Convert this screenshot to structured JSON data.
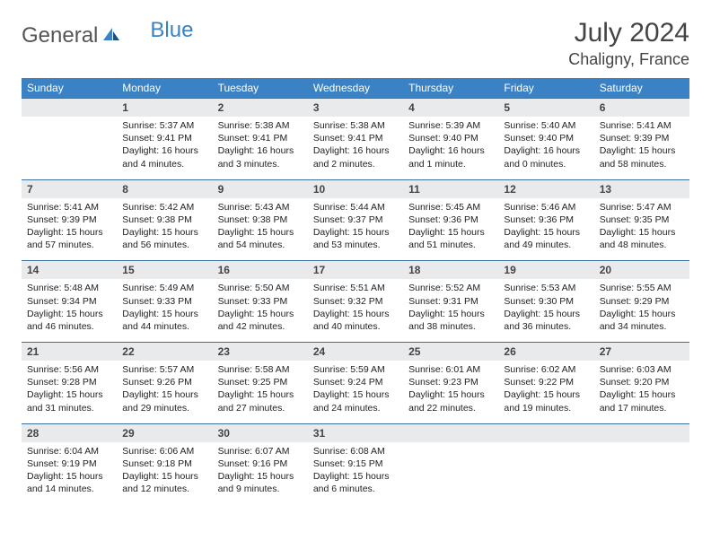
{
  "brand": {
    "part1": "General",
    "part2": "Blue"
  },
  "title": "July 2024",
  "location": "Chaligny, France",
  "colors": {
    "header_bg": "#3b82c4",
    "header_text": "#ffffff",
    "daynum_bg": "#e9eaec",
    "border": "#3b6fa0",
    "text": "#222222",
    "brand_gray": "#555555",
    "brand_blue": "#3b82c4"
  },
  "day_headers": [
    "Sunday",
    "Monday",
    "Tuesday",
    "Wednesday",
    "Thursday",
    "Friday",
    "Saturday"
  ],
  "weeks": [
    {
      "nums": [
        "",
        "1",
        "2",
        "3",
        "4",
        "5",
        "6"
      ],
      "cells": [
        {
          "l1": "",
          "l2": "",
          "l3": "",
          "l4": ""
        },
        {
          "l1": "Sunrise: 5:37 AM",
          "l2": "Sunset: 9:41 PM",
          "l3": "Daylight: 16 hours",
          "l4": "and 4 minutes."
        },
        {
          "l1": "Sunrise: 5:38 AM",
          "l2": "Sunset: 9:41 PM",
          "l3": "Daylight: 16 hours",
          "l4": "and 3 minutes."
        },
        {
          "l1": "Sunrise: 5:38 AM",
          "l2": "Sunset: 9:41 PM",
          "l3": "Daylight: 16 hours",
          "l4": "and 2 minutes."
        },
        {
          "l1": "Sunrise: 5:39 AM",
          "l2": "Sunset: 9:40 PM",
          "l3": "Daylight: 16 hours",
          "l4": "and 1 minute."
        },
        {
          "l1": "Sunrise: 5:40 AM",
          "l2": "Sunset: 9:40 PM",
          "l3": "Daylight: 16 hours",
          "l4": "and 0 minutes."
        },
        {
          "l1": "Sunrise: 5:41 AM",
          "l2": "Sunset: 9:39 PM",
          "l3": "Daylight: 15 hours",
          "l4": "and 58 minutes."
        }
      ]
    },
    {
      "nums": [
        "7",
        "8",
        "9",
        "10",
        "11",
        "12",
        "13"
      ],
      "cells": [
        {
          "l1": "Sunrise: 5:41 AM",
          "l2": "Sunset: 9:39 PM",
          "l3": "Daylight: 15 hours",
          "l4": "and 57 minutes."
        },
        {
          "l1": "Sunrise: 5:42 AM",
          "l2": "Sunset: 9:38 PM",
          "l3": "Daylight: 15 hours",
          "l4": "and 56 minutes."
        },
        {
          "l1": "Sunrise: 5:43 AM",
          "l2": "Sunset: 9:38 PM",
          "l3": "Daylight: 15 hours",
          "l4": "and 54 minutes."
        },
        {
          "l1": "Sunrise: 5:44 AM",
          "l2": "Sunset: 9:37 PM",
          "l3": "Daylight: 15 hours",
          "l4": "and 53 minutes."
        },
        {
          "l1": "Sunrise: 5:45 AM",
          "l2": "Sunset: 9:36 PM",
          "l3": "Daylight: 15 hours",
          "l4": "and 51 minutes."
        },
        {
          "l1": "Sunrise: 5:46 AM",
          "l2": "Sunset: 9:36 PM",
          "l3": "Daylight: 15 hours",
          "l4": "and 49 minutes."
        },
        {
          "l1": "Sunrise: 5:47 AM",
          "l2": "Sunset: 9:35 PM",
          "l3": "Daylight: 15 hours",
          "l4": "and 48 minutes."
        }
      ]
    },
    {
      "nums": [
        "14",
        "15",
        "16",
        "17",
        "18",
        "19",
        "20"
      ],
      "cells": [
        {
          "l1": "Sunrise: 5:48 AM",
          "l2": "Sunset: 9:34 PM",
          "l3": "Daylight: 15 hours",
          "l4": "and 46 minutes."
        },
        {
          "l1": "Sunrise: 5:49 AM",
          "l2": "Sunset: 9:33 PM",
          "l3": "Daylight: 15 hours",
          "l4": "and 44 minutes."
        },
        {
          "l1": "Sunrise: 5:50 AM",
          "l2": "Sunset: 9:33 PM",
          "l3": "Daylight: 15 hours",
          "l4": "and 42 minutes."
        },
        {
          "l1": "Sunrise: 5:51 AM",
          "l2": "Sunset: 9:32 PM",
          "l3": "Daylight: 15 hours",
          "l4": "and 40 minutes."
        },
        {
          "l1": "Sunrise: 5:52 AM",
          "l2": "Sunset: 9:31 PM",
          "l3": "Daylight: 15 hours",
          "l4": "and 38 minutes."
        },
        {
          "l1": "Sunrise: 5:53 AM",
          "l2": "Sunset: 9:30 PM",
          "l3": "Daylight: 15 hours",
          "l4": "and 36 minutes."
        },
        {
          "l1": "Sunrise: 5:55 AM",
          "l2": "Sunset: 9:29 PM",
          "l3": "Daylight: 15 hours",
          "l4": "and 34 minutes."
        }
      ]
    },
    {
      "nums": [
        "21",
        "22",
        "23",
        "24",
        "25",
        "26",
        "27"
      ],
      "cells": [
        {
          "l1": "Sunrise: 5:56 AM",
          "l2": "Sunset: 9:28 PM",
          "l3": "Daylight: 15 hours",
          "l4": "and 31 minutes."
        },
        {
          "l1": "Sunrise: 5:57 AM",
          "l2": "Sunset: 9:26 PM",
          "l3": "Daylight: 15 hours",
          "l4": "and 29 minutes."
        },
        {
          "l1": "Sunrise: 5:58 AM",
          "l2": "Sunset: 9:25 PM",
          "l3": "Daylight: 15 hours",
          "l4": "and 27 minutes."
        },
        {
          "l1": "Sunrise: 5:59 AM",
          "l2": "Sunset: 9:24 PM",
          "l3": "Daylight: 15 hours",
          "l4": "and 24 minutes."
        },
        {
          "l1": "Sunrise: 6:01 AM",
          "l2": "Sunset: 9:23 PM",
          "l3": "Daylight: 15 hours",
          "l4": "and 22 minutes."
        },
        {
          "l1": "Sunrise: 6:02 AM",
          "l2": "Sunset: 9:22 PM",
          "l3": "Daylight: 15 hours",
          "l4": "and 19 minutes."
        },
        {
          "l1": "Sunrise: 6:03 AM",
          "l2": "Sunset: 9:20 PM",
          "l3": "Daylight: 15 hours",
          "l4": "and 17 minutes."
        }
      ]
    },
    {
      "nums": [
        "28",
        "29",
        "30",
        "31",
        "",
        "",
        ""
      ],
      "cells": [
        {
          "l1": "Sunrise: 6:04 AM",
          "l2": "Sunset: 9:19 PM",
          "l3": "Daylight: 15 hours",
          "l4": "and 14 minutes."
        },
        {
          "l1": "Sunrise: 6:06 AM",
          "l2": "Sunset: 9:18 PM",
          "l3": "Daylight: 15 hours",
          "l4": "and 12 minutes."
        },
        {
          "l1": "Sunrise: 6:07 AM",
          "l2": "Sunset: 9:16 PM",
          "l3": "Daylight: 15 hours",
          "l4": "and 9 minutes."
        },
        {
          "l1": "Sunrise: 6:08 AM",
          "l2": "Sunset: 9:15 PM",
          "l3": "Daylight: 15 hours",
          "l4": "and 6 minutes."
        },
        {
          "l1": "",
          "l2": "",
          "l3": "",
          "l4": ""
        },
        {
          "l1": "",
          "l2": "",
          "l3": "",
          "l4": ""
        },
        {
          "l1": "",
          "l2": "",
          "l3": "",
          "l4": ""
        }
      ]
    }
  ]
}
